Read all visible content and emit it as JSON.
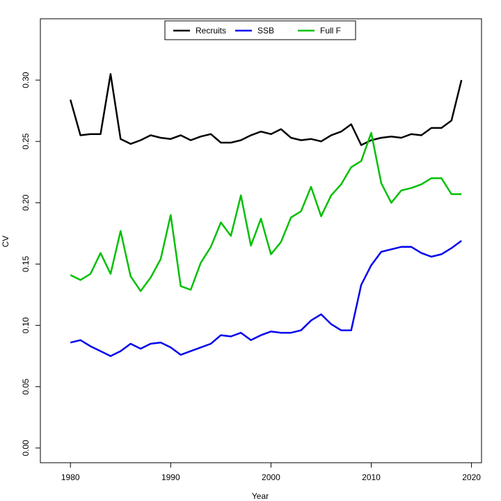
{
  "chart_data": {
    "type": "line",
    "title": "",
    "xlabel": "Year",
    "ylabel": "CV",
    "xlim": [
      1977,
      2021
    ],
    "ylim": [
      -0.012,
      0.35
    ],
    "xticks": [
      1980,
      1990,
      2000,
      2010,
      2020
    ],
    "xtick_labels": [
      "1980",
      "1990",
      "2000",
      "2010",
      "2020"
    ],
    "yticks": [
      0.0,
      0.05,
      0.1,
      0.15,
      0.2,
      0.25,
      0.3
    ],
    "ytick_labels": [
      "0.00",
      "0.05",
      "0.10",
      "0.15",
      "0.20",
      "0.25",
      "0.30"
    ],
    "grid": false,
    "legend_position": "top-center",
    "x": [
      1980,
      1981,
      1982,
      1983,
      1984,
      1985,
      1986,
      1987,
      1988,
      1989,
      1990,
      1991,
      1992,
      1993,
      1994,
      1995,
      1996,
      1997,
      1998,
      1999,
      2000,
      2001,
      2002,
      2003,
      2004,
      2005,
      2006,
      2007,
      2008,
      2009,
      2010,
      2011,
      2012,
      2013,
      2014,
      2015,
      2016,
      2017,
      2018,
      2019
    ],
    "series": [
      {
        "name": "Recruits",
        "color": "#000000",
        "values": [
          0.284,
          0.255,
          0.256,
          0.256,
          0.305,
          0.252,
          0.248,
          0.251,
          0.255,
          0.253,
          0.252,
          0.255,
          0.251,
          0.254,
          0.256,
          0.249,
          0.249,
          0.251,
          0.255,
          0.258,
          0.256,
          0.26,
          0.253,
          0.251,
          0.252,
          0.25,
          0.255,
          0.258,
          0.264,
          0.247,
          0.251,
          0.253,
          0.254,
          0.253,
          0.256,
          0.255,
          0.261,
          0.261,
          0.267,
          0.3
        ]
      },
      {
        "name": "SSB",
        "color": "#0000ee",
        "values": [
          0.086,
          0.088,
          0.083,
          0.079,
          0.075,
          0.079,
          0.085,
          0.081,
          0.085,
          0.086,
          0.082,
          0.076,
          0.079,
          0.082,
          0.085,
          0.092,
          0.091,
          0.094,
          0.088,
          0.092,
          0.095,
          0.094,
          0.094,
          0.096,
          0.104,
          0.109,
          0.101,
          0.096,
          0.096,
          0.133,
          0.149,
          0.16,
          0.162,
          0.164,
          0.164,
          0.159,
          0.156,
          0.158,
          0.163,
          0.169
        ]
      },
      {
        "name": "Full F",
        "color": "#00c000",
        "values": [
          0.141,
          0.137,
          0.142,
          0.159,
          0.142,
          0.177,
          0.14,
          0.128,
          0.139,
          0.154,
          0.19,
          0.132,
          0.129,
          0.151,
          0.164,
          0.184,
          0.173,
          0.206,
          0.165,
          0.187,
          0.158,
          0.168,
          0.188,
          0.193,
          0.213,
          0.189,
          0.206,
          0.215,
          0.229,
          0.234,
          0.257,
          0.216,
          0.2,
          0.21,
          0.212,
          0.215,
          0.22,
          0.22,
          0.207,
          0.207
        ]
      }
    ]
  }
}
